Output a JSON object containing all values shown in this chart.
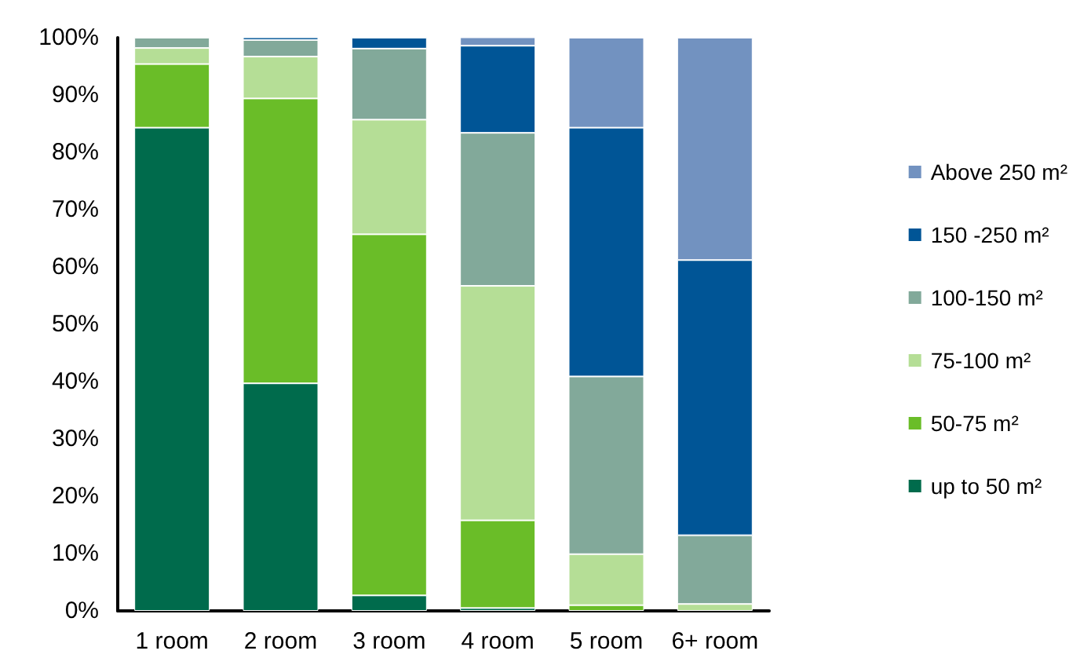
{
  "chart_data": {
    "type": "bar",
    "stacked": true,
    "categories": [
      "1 room",
      "2 room",
      "3 room",
      "4 room",
      "5 room",
      "6+ room"
    ],
    "series": [
      {
        "name": "up to 50 m²",
        "color": "#006b4c",
        "values": [
          84.3,
          39.7,
          2.7,
          0.5,
          0,
          0
        ]
      },
      {
        "name": "50-75 m²",
        "color": "#6abd28",
        "values": [
          11.1,
          49.7,
          63,
          15.3,
          1,
          0
        ]
      },
      {
        "name": "75-100 m²",
        "color": "#b5de96",
        "values": [
          2.8,
          7.3,
          20,
          40.9,
          8.9,
          1.2
        ]
      },
      {
        "name": "100-150 m²",
        "color": "#82a99a",
        "values": [
          1.8,
          2.9,
          12.4,
          26.7,
          31,
          12
        ]
      },
      {
        "name": "150 -250 m²",
        "color": "#005596",
        "values": [
          0,
          0.5,
          1.9,
          15.2,
          43.4,
          48
        ]
      },
      {
        "name": "Above 250 m²",
        "color": "#7292c0",
        "values": [
          0,
          0.1,
          0,
          1.6,
          15.7,
          38.8
        ]
      }
    ],
    "ylim": [
      0,
      100
    ],
    "yticks": [
      {
        "value": 0,
        "label": "0%"
      },
      {
        "value": 10,
        "label": "10%"
      },
      {
        "value": 20,
        "label": "20%"
      },
      {
        "value": 30,
        "label": "30%"
      },
      {
        "value": 40,
        "label": "40%"
      },
      {
        "value": 50,
        "label": "50%"
      },
      {
        "value": 60,
        "label": "60%"
      },
      {
        "value": 70,
        "label": "70%"
      },
      {
        "value": 80,
        "label": "80%"
      },
      {
        "value": 90,
        "label": "90%"
      },
      {
        "value": 100,
        "label": "100%"
      }
    ],
    "grid": false,
    "legend": "right"
  }
}
